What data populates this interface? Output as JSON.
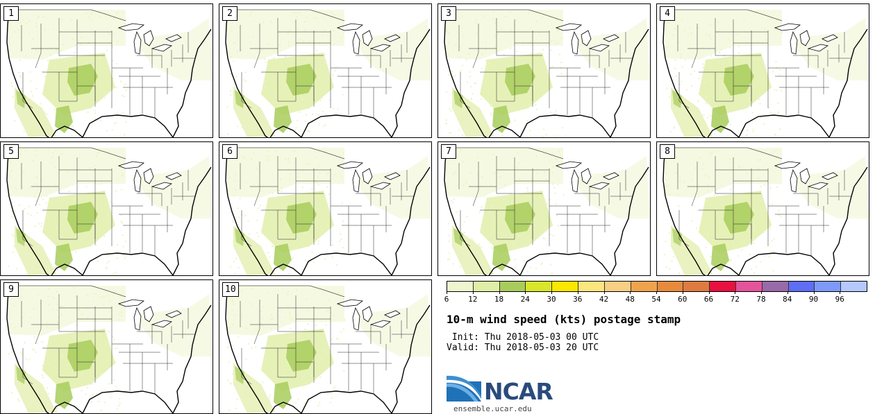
{
  "panels": [
    {
      "label": "1"
    },
    {
      "label": "2"
    },
    {
      "label": "3"
    },
    {
      "label": "4"
    },
    {
      "label": "5"
    },
    {
      "label": "6"
    },
    {
      "label": "7"
    },
    {
      "label": "8"
    },
    {
      "label": "9"
    },
    {
      "label": "10"
    }
  ],
  "colorbar": {
    "ticks": [
      "6",
      "12",
      "18",
      "24",
      "30",
      "36",
      "42",
      "48",
      "54",
      "60",
      "66",
      "72",
      "78",
      "84",
      "90",
      "96"
    ],
    "colors": [
      "#eef5cf",
      "#e0efa6",
      "#a8cc5c",
      "#d9e62a",
      "#fbe700",
      "#fde680",
      "#f8cf83",
      "#f0a34d",
      "#e88a3c",
      "#de7b40",
      "#e8113f",
      "#e5549b",
      "#996aa8",
      "#5e6ef5",
      "#7e9af9",
      "#b4c9fd"
    ]
  },
  "info": {
    "title": "10-m wind speed (kts) postage stamp",
    "init": " Init: Thu 2018-05-03 00 UTC",
    "valid": "Valid: Thu 2018-05-03 20 UTC"
  },
  "logo": {
    "text": "NCAR",
    "site": "ensemble.ucar.edu"
  }
}
